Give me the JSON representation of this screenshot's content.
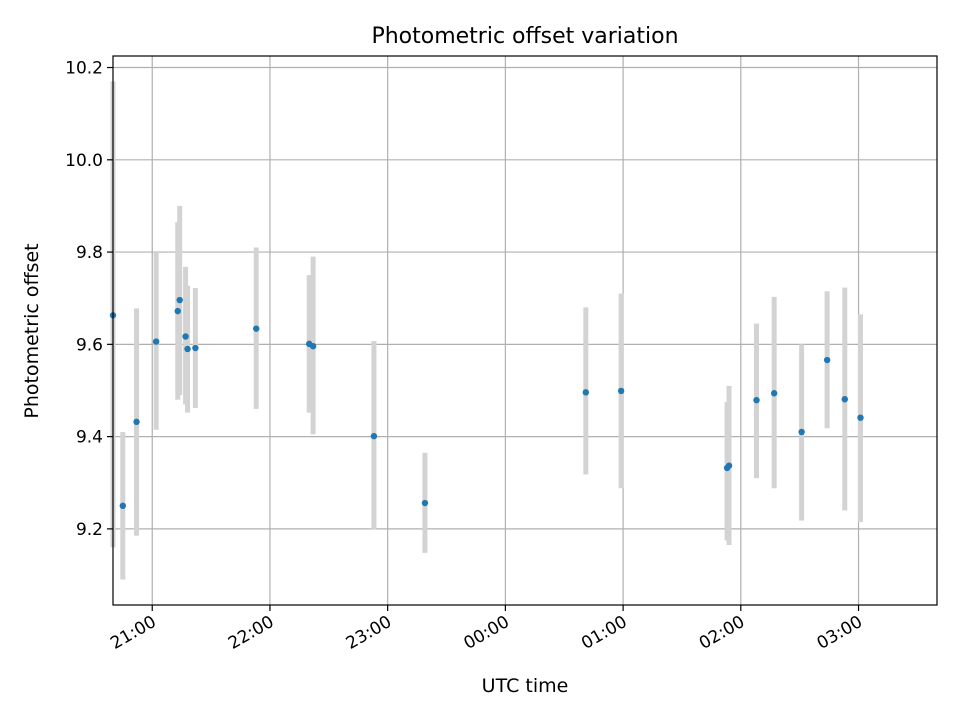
{
  "chart_data": {
    "type": "scatter",
    "title": "Photometric offset variation",
    "xlabel": "UTC time",
    "ylabel": "Photometric offset",
    "grid": true,
    "xlim": [
      "20:40",
      "03:40"
    ],
    "ylim": [
      9.035,
      10.225
    ],
    "x_ticks": [
      "21:00",
      "22:00",
      "23:00",
      "00:00",
      "01:00",
      "02:00",
      "03:00"
    ],
    "y_ticks": [
      "9.2",
      "9.4",
      "9.6",
      "9.8",
      "10.0",
      "10.2"
    ],
    "colors": {
      "point": "#1f77b4",
      "errorbar": "#d3d3d3",
      "grid": "#b0b0b0"
    },
    "points": [
      {
        "x": "20:40",
        "y": 9.663,
        "ylo": 9.16,
        "yhi": 10.17
      },
      {
        "x": "20:45",
        "y": 9.25,
        "ylo": 9.09,
        "yhi": 9.41
      },
      {
        "x": "20:52",
        "y": 9.432,
        "ylo": 9.185,
        "yhi": 9.678
      },
      {
        "x": "21:02",
        "y": 9.606,
        "ylo": 9.415,
        "yhi": 9.8
      },
      {
        "x": "21:13",
        "y": 9.672,
        "ylo": 9.48,
        "yhi": 9.865
      },
      {
        "x": "21:14",
        "y": 9.696,
        "ylo": 9.49,
        "yhi": 9.9
      },
      {
        "x": "21:17",
        "y": 9.617,
        "ylo": 9.47,
        "yhi": 9.768
      },
      {
        "x": "21:18",
        "y": 9.59,
        "ylo": 9.452,
        "yhi": 9.727
      },
      {
        "x": "21:22",
        "y": 9.592,
        "ylo": 9.462,
        "yhi": 9.722
      },
      {
        "x": "21:53",
        "y": 9.634,
        "ylo": 9.46,
        "yhi": 9.81
      },
      {
        "x": "22:20",
        "y": 9.601,
        "ylo": 9.452,
        "yhi": 9.75
      },
      {
        "x": "22:22",
        "y": 9.596,
        "ylo": 9.405,
        "yhi": 9.79
      },
      {
        "x": "22:53",
        "y": 9.401,
        "ylo": 9.198,
        "yhi": 9.607
      },
      {
        "x": "23:19",
        "y": 9.256,
        "ylo": 9.148,
        "yhi": 9.365
      },
      {
        "x": "00:41",
        "y": 9.496,
        "ylo": 9.318,
        "yhi": 9.68
      },
      {
        "x": "00:59",
        "y": 9.499,
        "ylo": 9.288,
        "yhi": 9.71
      },
      {
        "x": "01:53",
        "y": 9.332,
        "ylo": 9.175,
        "yhi": 9.475
      },
      {
        "x": "01:54",
        "y": 9.337,
        "ylo": 9.165,
        "yhi": 9.51
      },
      {
        "x": "02:08",
        "y": 9.479,
        "ylo": 9.31,
        "yhi": 9.645
      },
      {
        "x": "02:17",
        "y": 9.494,
        "ylo": 9.288,
        "yhi": 9.703
      },
      {
        "x": "02:31",
        "y": 9.41,
        "ylo": 9.218,
        "yhi": 9.6
      },
      {
        "x": "02:44",
        "y": 9.566,
        "ylo": 9.418,
        "yhi": 9.715
      },
      {
        "x": "02:53",
        "y": 9.481,
        "ylo": 9.24,
        "yhi": 9.723
      },
      {
        "x": "03:01",
        "y": 9.441,
        "ylo": 9.215,
        "yhi": 9.665
      }
    ]
  }
}
